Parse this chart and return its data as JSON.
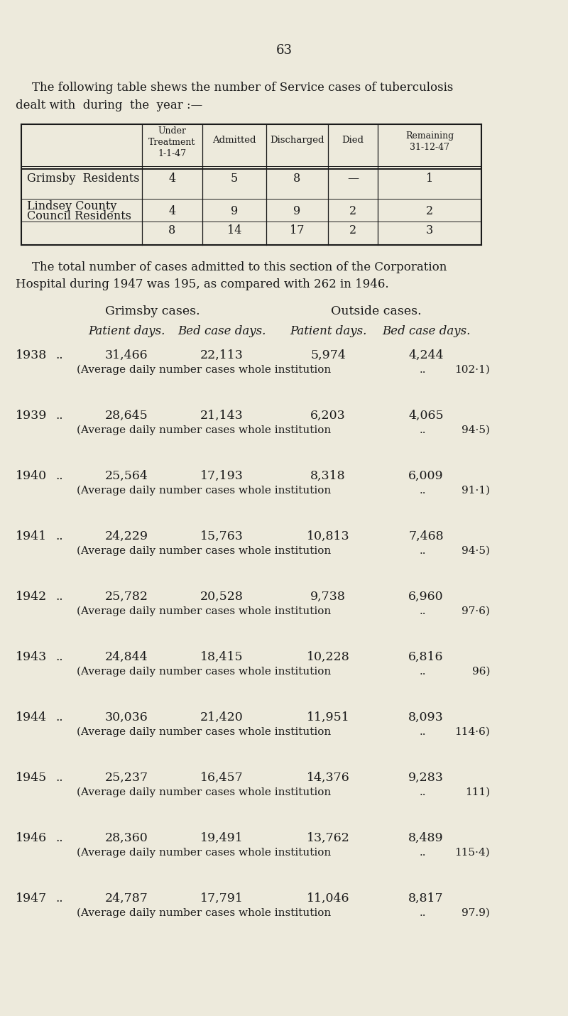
{
  "bg_color": "#edeadc",
  "text_color": "#1a1a1a",
  "page_number": "63",
  "intro_line1": "The following table shews the number of Service cases of tuberculosis",
  "intro_line2": "dealt with  during  the  year :—",
  "table_headers": [
    "Under\nTreatment\n1-1-47",
    "Admitted",
    "Discharged",
    "Died",
    "Remaining\n31-12-47"
  ],
  "row1_label": "Grimsby  Residents",
  "row1_vals": [
    "4",
    "5",
    "8",
    "—",
    "1"
  ],
  "row2_label1": "Lindsey County",
  "row2_label2": "Council Residents",
  "row2_vals": [
    "4",
    "9",
    "9",
    "2",
    "2"
  ],
  "row3_vals": [
    "8",
    "14",
    "17",
    "2",
    "3"
  ],
  "para_line1": "The total number of cases admitted to this section of the Corporation",
  "para_line2": "Hospital during 1947 was 195, as compared with 262 in 1946.",
  "sec_hdr1": "Grimsby cases.",
  "sec_hdr2": "Outside cases.",
  "col_hdr1": "Patient days.",
  "col_hdr2": "Bed case days.",
  "col_hdr3": "Patient days.",
  "col_hdr4": "Bed case days.",
  "yearly_data": [
    {
      "year": "1938",
      "grim_pd": "31,466",
      "grim_bcd": "22,113",
      "out_pd": "5,974",
      "out_bcd": "4,244",
      "avg": "102·1"
    },
    {
      "year": "1939",
      "grim_pd": "28,645",
      "grim_bcd": "21,143",
      "out_pd": "6,203",
      "out_bcd": "4,065",
      "avg": "94·5"
    },
    {
      "year": "1940",
      "grim_pd": "25,564",
      "grim_bcd": "17,193",
      "out_pd": "8,318",
      "out_bcd": "6,009",
      "avg": "91·1"
    },
    {
      "year": "1941",
      "grim_pd": "24,229",
      "grim_bcd": "15,763",
      "out_pd": "10,813",
      "out_bcd": "7,468",
      "avg": "94·5"
    },
    {
      "year": "1942",
      "grim_pd": "25,782",
      "grim_bcd": "20,528",
      "out_pd": "9,738",
      "out_bcd": "6,960",
      "avg": "97·6"
    },
    {
      "year": "1943",
      "grim_pd": "24,844",
      "grim_bcd": "18,415",
      "out_pd": "10,228",
      "out_bcd": "6,816",
      "avg": "96"
    },
    {
      "year": "1944",
      "grim_pd": "30,036",
      "grim_bcd": "21,420",
      "out_pd": "11,951",
      "out_bcd": "8,093",
      "avg": "114·6"
    },
    {
      "year": "1945",
      "grim_pd": "25,237",
      "grim_bcd": "16,457",
      "out_pd": "14,376",
      "out_bcd": "9,283",
      "avg": "111"
    },
    {
      "year": "1946",
      "grim_pd": "28,360",
      "grim_bcd": "19,491",
      "out_pd": "13,762",
      "out_bcd": "8,489",
      "avg": "115·4"
    },
    {
      "year": "1947",
      "grim_pd": "24,787",
      "grim_bcd": "17,791",
      "out_pd": "11,046",
      "out_bcd": "8,817",
      "avg": "97.9"
    }
  ],
  "avg_label": "(Average daily number cases whole institution"
}
